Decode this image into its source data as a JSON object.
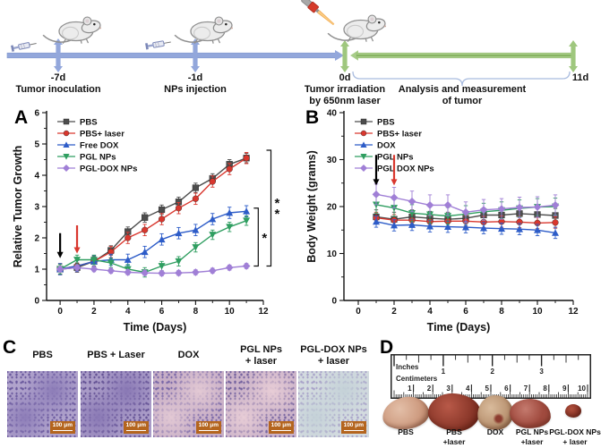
{
  "panels": {
    "a": "A",
    "b": "B",
    "c": "C",
    "d": "D"
  },
  "timeline": {
    "events": [
      {
        "day": "-7d",
        "line1": "Tumor inoculation",
        "line2": ""
      },
      {
        "day": "-1d",
        "line1": "NPs injection",
        "line2": ""
      },
      {
        "day": "0d",
        "line1": "Tumor irradiation",
        "line2": "by 650nm laser"
      },
      {
        "day": "11d",
        "line1": "",
        "line2": ""
      }
    ],
    "analysis_line1": "Analysis and measurement",
    "analysis_line2": "of tumor",
    "colors": {
      "pre_phase_bar": "#93a7db",
      "post_phase_bar": "#a8cd89"
    }
  },
  "chart_data": [
    {
      "type": "line",
      "panel": "A",
      "xlabel": "Time (Days)",
      "ylabel": "Relative Tumor Growth",
      "xlim": [
        -0.8,
        12
      ],
      "ylim": [
        0,
        6
      ],
      "xticks": [
        0,
        2,
        4,
        6,
        8,
        10,
        12
      ],
      "yticks": [
        0,
        1,
        2,
        3,
        4,
        5,
        6
      ],
      "xminor": [
        1,
        3,
        5,
        7,
        9,
        11
      ],
      "yminor": [
        0.5,
        1.5,
        2.5,
        3.5,
        4.5,
        5.5
      ],
      "x": [
        0,
        1,
        2,
        3,
        4,
        5,
        6,
        7,
        8,
        9,
        10,
        11
      ],
      "series": [
        {
          "name": "PBS",
          "color": "#4d4d4d",
          "marker": "square",
          "err": 0.15,
          "y": [
            1.0,
            1.05,
            1.25,
            1.6,
            2.2,
            2.65,
            2.9,
            3.15,
            3.6,
            3.9,
            4.35,
            4.55
          ]
        },
        {
          "name": "PBS+ laser",
          "color": "#d9372e",
          "marker": "circle",
          "err": 0.18,
          "y": [
            1.0,
            1.1,
            1.25,
            1.55,
            2.0,
            2.25,
            2.6,
            2.95,
            3.25,
            3.8,
            4.2,
            4.55
          ]
        },
        {
          "name": "Free DOX",
          "color": "#2d5cc8",
          "marker": "triangle",
          "err": 0.18,
          "y": [
            1.0,
            1.1,
            1.25,
            1.3,
            1.3,
            1.55,
            1.95,
            2.15,
            2.25,
            2.6,
            2.8,
            2.85
          ]
        },
        {
          "name": "PGL NPs",
          "color": "#2f9e60",
          "marker": "triangle-down",
          "err": 0.15,
          "y": [
            1.0,
            1.3,
            1.3,
            1.2,
            1.0,
            0.9,
            1.1,
            1.25,
            1.7,
            2.1,
            2.35,
            2.55
          ]
        },
        {
          "name": "PGL-DOX NPs",
          "color": "#a07fd6",
          "marker": "diamond",
          "err": 0.08,
          "y": [
            1.0,
            1.05,
            1.0,
            0.95,
            0.9,
            0.88,
            0.87,
            0.88,
            0.9,
            0.95,
            1.05,
            1.1
          ]
        }
      ],
      "arrows": [
        {
          "x": 0,
          "y1": 2.15,
          "y2": 1.35,
          "color": "#000000"
        },
        {
          "x": 1,
          "y1": 2.4,
          "y2": 1.5,
          "color": "#d9372e"
        }
      ],
      "brackets": [
        {
          "x": 11.7,
          "y1": 2.95,
          "y2": 1.1,
          "label": "*"
        },
        {
          "x": 12.45,
          "y1": 4.8,
          "y2": 1.1,
          "label": "**"
        }
      ],
      "legend_position": "top-left",
      "grid": false
    },
    {
      "type": "line",
      "panel": "B",
      "xlabel": "Time (Days)",
      "ylabel": "Body Weight (grams)",
      "xlim": [
        -0.8,
        12
      ],
      "ylim": [
        0,
        40
      ],
      "xticks": [
        0,
        2,
        4,
        6,
        8,
        10,
        12
      ],
      "yticks": [
        0,
        10,
        20,
        30,
        40
      ],
      "xminor": [
        1,
        3,
        5,
        7,
        9,
        11
      ],
      "yminor": [
        5,
        15,
        25,
        35
      ],
      "x": [
        1,
        2,
        3,
        4,
        5,
        6,
        7,
        8,
        9,
        10,
        11
      ],
      "series": [
        {
          "name": "PBS",
          "color": "#4d4d4d",
          "marker": "square",
          "err": 1.5,
          "y": [
            17.8,
            17.3,
            17.8,
            17.5,
            17.3,
            17.5,
            18.2,
            18.2,
            18.5,
            18.3,
            18.1
          ]
        },
        {
          "name": "PBS+ laser",
          "color": "#d9372e",
          "marker": "circle",
          "err": 1.2,
          "y": [
            17.6,
            17.1,
            17.1,
            16.8,
            16.9,
            16.9,
            16.7,
            16.8,
            16.7,
            16.5,
            16.6
          ]
        },
        {
          "name": "DOX",
          "color": "#2d5cc8",
          "marker": "triangle",
          "err": 1.2,
          "y": [
            16.8,
            16.0,
            16.1,
            15.8,
            15.7,
            15.6,
            15.4,
            15.3,
            15.2,
            15.0,
            14.4
          ]
        },
        {
          "name": "PGL NPs",
          "color": "#2f9e60",
          "marker": "triangle-down",
          "err": 1.8,
          "y": [
            20.4,
            19.7,
            18.6,
            18.3,
            18.0,
            18.4,
            18.9,
            19.2,
            19.6,
            19.9,
            20.0
          ]
        },
        {
          "name": "PGL DOX NPs",
          "color": "#a07fd6",
          "marker": "diamond",
          "err": 2.2,
          "y": [
            22.6,
            21.9,
            21.1,
            20.3,
            20.3,
            18.8,
            19.3,
            19.5,
            19.8,
            19.9,
            20.3
          ]
        }
      ],
      "arrows": [
        {
          "x": 1,
          "y1": 31,
          "y2": 24.5,
          "color": "#000000"
        },
        {
          "x": 2,
          "y1": 31,
          "y2": 24.5,
          "color": "#d9372e"
        }
      ],
      "brackets": [],
      "legend_position": "top-left",
      "grid": false
    }
  ],
  "panel_c": {
    "labels": [
      {
        "line1": "PBS",
        "line2": ""
      },
      {
        "line1": "PBS + Laser",
        "line2": ""
      },
      {
        "line1": "DOX",
        "line2": ""
      },
      {
        "line1": "PGL NPs",
        "line2": "+ laser"
      },
      {
        "line1": "PGL-DOX NPs",
        "line2": "+ laser"
      }
    ],
    "scalebar": "100 μm",
    "scalebar_color": "#b4651e",
    "images": [
      {
        "base": "#b0a3cc",
        "patch": "#8d7db8",
        "dot": "#6b5a9e"
      },
      {
        "base": "#a99bc7",
        "patch": "#8a79b5",
        "dot": "#655395"
      },
      {
        "base": "#c7aec6",
        "patch": "#e3c9d4",
        "dot": "#7a68a8"
      },
      {
        "base": "#cbb3c9",
        "patch": "#e8cdd6",
        "dot": "#75639f"
      },
      {
        "base": "#d3dbdf",
        "patch": "#c5d2d8",
        "dot": "#a9a3c9"
      }
    ]
  },
  "panel_d": {
    "ruler": {
      "unit_top": "Inches",
      "unit_bottom": "Centimeters",
      "inch_numbers": [
        1,
        2,
        3
      ],
      "cm_numbers": [
        1,
        2,
        3,
        4,
        5,
        6,
        7,
        8,
        9,
        10
      ]
    },
    "tumors": [
      {
        "line1": "PBS",
        "line2": "",
        "hi": "#e3bfa8",
        "color": "#cf9d82",
        "lo": "#b27a5e",
        "spot": ""
      },
      {
        "line1": "PBS",
        "line2": "+laser",
        "hi": "#b85948",
        "color": "#8e3a2c",
        "lo": "#671f15",
        "spot": ""
      },
      {
        "line1": "DOX",
        "line2": "",
        "hi": "#d9bb9c",
        "color": "#bb9573",
        "lo": "#96704e",
        "spot": "#8c3c2f"
      },
      {
        "line1": "PGL NPs",
        "line2": "+laser",
        "hi": "#c47a6e",
        "color": "#a04a3e",
        "lo": "#77niet",
        "spot": ""
      },
      {
        "line1": "PGL-DOX NPs",
        "line2": "+ laser",
        "hi": "#b0503c",
        "color": "#8f372a",
        "lo": "#6b241a",
        "spot": ""
      }
    ]
  }
}
